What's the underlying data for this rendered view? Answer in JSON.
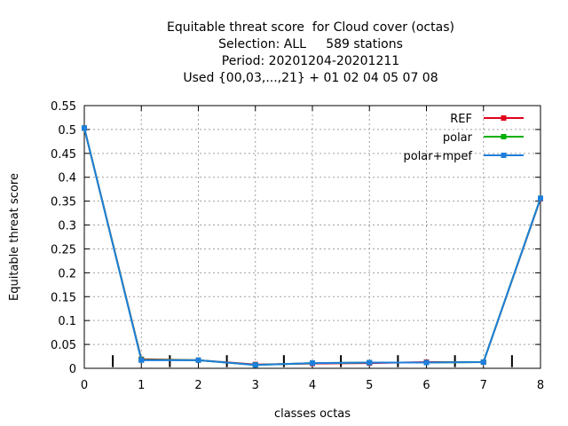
{
  "chart_data": {
    "type": "line",
    "title_lines": [
      "Equitable threat score  for Cloud cover (octas)",
      "Selection: ALL     589 stations",
      "Period: 20201204-20201211",
      "Used {00,03,...,21} + 01 02 04 05 07 08"
    ],
    "xlabel": "classes octas",
    "ylabel": "Equitable threat score",
    "xlim": [
      0,
      8
    ],
    "ylim": [
      0,
      0.55
    ],
    "xticks": [
      "0",
      "1",
      "2",
      "3",
      "4",
      "5",
      "6",
      "7",
      "8"
    ],
    "yticks": [
      "0",
      "0.05",
      "0.1",
      "0.15",
      "0.2",
      "0.25",
      "0.3",
      "0.35",
      "0.4",
      "0.45",
      "0.5",
      "0.55"
    ],
    "grid": true,
    "legend_position": "top-right",
    "minor_markers_x": [
      0.5,
      1.5,
      2.5,
      3.5,
      4.5,
      5.5,
      6.5,
      7.5
    ],
    "x": [
      0,
      1,
      2,
      3,
      4,
      5,
      6,
      7,
      8
    ],
    "series": [
      {
        "name": "REF",
        "color": "#e0001c",
        "values": [
          0.503,
          0.019,
          0.017,
          0.008,
          0.01,
          0.011,
          0.013,
          0.013,
          0.355
        ]
      },
      {
        "name": "polar",
        "color": "#00b000",
        "values": [
          0.503,
          0.018,
          0.017,
          0.007,
          0.011,
          0.012,
          0.012,
          0.013,
          0.356
        ]
      },
      {
        "name": "polar+mpef",
        "color": "#1e7fdc",
        "values": [
          0.503,
          0.017,
          0.017,
          0.007,
          0.011,
          0.012,
          0.012,
          0.013,
          0.356
        ]
      }
    ]
  }
}
